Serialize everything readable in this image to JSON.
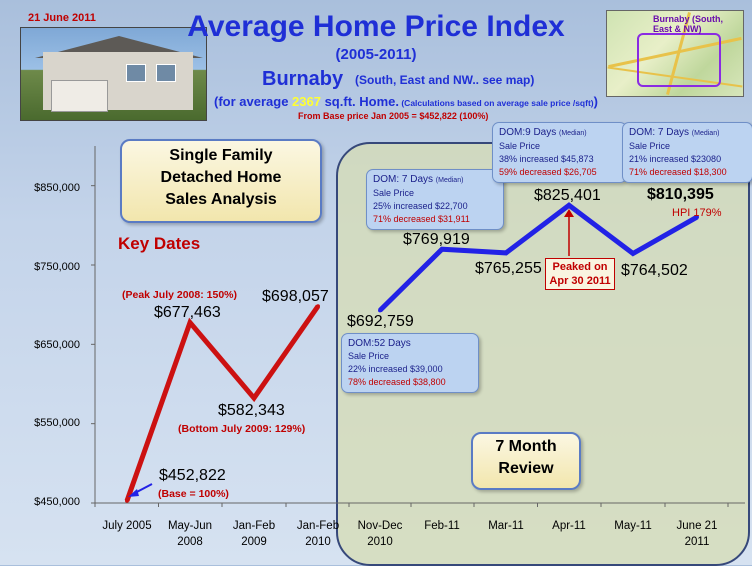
{
  "date": "21 June 2011",
  "title": "Average Home Price Index",
  "years": "(2005-2011)",
  "city": "Burnaby",
  "city_note": "(South, East and NW.. see map)",
  "avg_pre": "(for average ",
  "avg_sqft": "2367",
  "avg_post": " sq.ft. Home.",
  "avg_calc": " (Calculations based on average sale price /sqft)",
  "avg_close": ")",
  "base_note": "From Base price Jan 2005 = $452,822 (100%)",
  "map_label": "Burnaby (South, East & NW)",
  "analysis_box": [
    "Single Family",
    "Detached Home",
    "Sales Analysis"
  ],
  "key_dates": "Key  Dates",
  "review_box": [
    "7 Month",
    "Review"
  ],
  "peak_note": "(Peak July 2008: 150%)",
  "bottom_note": "(Bottom July 2009: 129%)",
  "base_pct_note": "(Base = 100%)",
  "peaked_box": "Peaked on Apr 30 2011",
  "hpi_note": "HPI 179%",
  "info_boxes": [
    {
      "dom": "DOM:52 Days",
      "sale": "Sale Price",
      "inc": "22% increased $39,000",
      "dec": "78% decreased $38,800"
    },
    {
      "dom": "DOM: 7 Days",
      "median": "(Median)",
      "sale": "Sale Price",
      "inc": "25% increased $22,700",
      "dec": "71% decreased $31,911"
    },
    {
      "dom": "DOM:9 Days",
      "median": "(Median)",
      "sale": "Sale Price",
      "inc": "38% increased $45,873",
      "dec": "59% decreased $26,705"
    },
    {
      "dom": "DOM: 7 Days",
      "median": "(Median)",
      "sale": "Sale Price",
      "inc": "21% increased $23080",
      "dec": "71% decreased $18,300"
    }
  ],
  "colors": {
    "red_line": "#cc1111",
    "blue_line": "#2222e6",
    "title_blue": "#1f2fd6"
  },
  "chart_data": {
    "type": "line",
    "categories": [
      "July 2005",
      "May-Jun 2008",
      "Jan-Feb 2009",
      "Jan-Feb 2010",
      "Nov-Dec 2010",
      "Feb-11",
      "Mar-11",
      "Apr-11",
      "May-11",
      "June 21 2011"
    ],
    "y_ticks": [
      "$450,000",
      "$550,000",
      "$650,000",
      "$750,000",
      "$850,000"
    ],
    "ylim": [
      450000,
      900000
    ],
    "series": [
      {
        "values": [
          452822,
          677463,
          582343,
          698057,
          null,
          null,
          null,
          null,
          null,
          null
        ],
        "color": "#cc1111"
      },
      {
        "values": [
          null,
          null,
          null,
          null,
          692759,
          769919,
          765255,
          825401,
          764502,
          810395
        ],
        "color": "#2222e6"
      }
    ],
    "data_labels": [
      "$452,822",
      "$677,463",
      "$582,343",
      "$698,057",
      "$692,759",
      "$769,919",
      "$765,255",
      "$825,401",
      "$764,502",
      "$810,395"
    ]
  }
}
